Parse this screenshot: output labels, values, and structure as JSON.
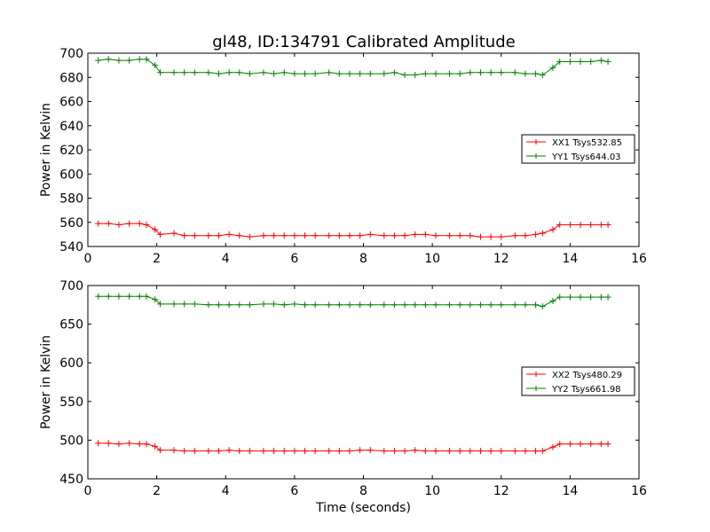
{
  "title": "gl48, ID:134791 Calibrated Amplitude",
  "colors": {
    "xx": "#ff0000",
    "yy": "#008000",
    "axes": "#000000"
  },
  "chart_data": [
    {
      "type": "line",
      "title": "gl48, ID:134791 Calibrated Amplitude",
      "xlabel": "",
      "ylabel": "Power in Kelvin",
      "xlim": [
        0,
        16
      ],
      "ylim": [
        540,
        700
      ],
      "xticks": [
        "0",
        "2",
        "4",
        "6",
        "8",
        "10",
        "12",
        "14",
        "16"
      ],
      "yticks": [
        "540",
        "560",
        "580",
        "600",
        "620",
        "640",
        "660",
        "680",
        "700"
      ],
      "grid": false,
      "legend_position": "right",
      "x": [
        0.3,
        0.6,
        0.9,
        1.2,
        1.5,
        1.7,
        1.95,
        2.1,
        2.5,
        2.8,
        3.1,
        3.5,
        3.8,
        4.1,
        4.4,
        4.7,
        5.1,
        5.4,
        5.7,
        6.0,
        6.3,
        6.6,
        7.0,
        7.3,
        7.6,
        7.9,
        8.2,
        8.6,
        8.9,
        9.2,
        9.5,
        9.8,
        10.1,
        10.5,
        10.8,
        11.1,
        11.4,
        11.7,
        12.0,
        12.4,
        12.7,
        13.0,
        13.2,
        13.5,
        13.7,
        14.0,
        14.3,
        14.6,
        14.9,
        15.1
      ],
      "series": [
        {
          "name": "XX1 Tsys532.85",
          "color": "#ff0000",
          "values": [
            559,
            559,
            558,
            559,
            559,
            558,
            554,
            550,
            551,
            549,
            549,
            549,
            549,
            550,
            549,
            548,
            549,
            549,
            549,
            549,
            549,
            549,
            549,
            549,
            549,
            549,
            550,
            549,
            549,
            549,
            550,
            550,
            549,
            549,
            549,
            549,
            548,
            548,
            548,
            549,
            549,
            550,
            551,
            554,
            558,
            558,
            558,
            558,
            558,
            558
          ]
        },
        {
          "name": "YY1 Tsys644.03",
          "color": "#008000",
          "values": [
            694,
            695,
            694,
            694,
            695,
            695,
            690,
            684,
            684,
            684,
            684,
            684,
            683,
            684,
            684,
            683,
            684,
            683,
            684,
            683,
            683,
            683,
            684,
            683,
            683,
            683,
            683,
            683,
            684,
            682,
            682,
            683,
            683,
            683,
            683,
            684,
            684,
            684,
            684,
            684,
            683,
            683,
            682,
            688,
            693,
            693,
            693,
            693,
            694,
            693
          ]
        }
      ]
    },
    {
      "type": "line",
      "title": "",
      "xlabel": "Time (seconds)",
      "ylabel": "Power in Kelvin",
      "xlim": [
        0,
        16
      ],
      "ylim": [
        450,
        700
      ],
      "xticks": [
        "0",
        "2",
        "4",
        "6",
        "8",
        "10",
        "12",
        "14",
        "16"
      ],
      "yticks": [
        "450",
        "500",
        "550",
        "600",
        "650",
        "700"
      ],
      "grid": false,
      "legend_position": "right",
      "x": [
        0.3,
        0.6,
        0.9,
        1.2,
        1.5,
        1.7,
        1.95,
        2.1,
        2.5,
        2.8,
        3.1,
        3.5,
        3.8,
        4.1,
        4.4,
        4.7,
        5.1,
        5.4,
        5.7,
        6.0,
        6.3,
        6.6,
        7.0,
        7.3,
        7.6,
        7.9,
        8.2,
        8.6,
        8.9,
        9.2,
        9.5,
        9.8,
        10.1,
        10.5,
        10.8,
        11.1,
        11.4,
        11.7,
        12.0,
        12.4,
        12.7,
        13.0,
        13.2,
        13.5,
        13.7,
        14.0,
        14.3,
        14.6,
        14.9,
        15.1
      ],
      "series": [
        {
          "name": "XX2 Tsys480.29",
          "color": "#ff0000",
          "values": [
            496,
            496,
            495,
            496,
            495,
            495,
            492,
            487,
            487,
            486,
            486,
            486,
            486,
            487,
            486,
            486,
            486,
            486,
            486,
            486,
            486,
            486,
            486,
            486,
            486,
            487,
            487,
            486,
            486,
            486,
            487,
            486,
            486,
            486,
            486,
            486,
            486,
            486,
            486,
            486,
            486,
            486,
            486,
            491,
            495,
            495,
            495,
            495,
            495,
            495
          ]
        },
        {
          "name": "YY2 Tsys661.98",
          "color": "#008000",
          "values": [
            686,
            686,
            686,
            686,
            686,
            686,
            682,
            676,
            676,
            676,
            676,
            675,
            675,
            675,
            675,
            675,
            676,
            676,
            675,
            676,
            675,
            675,
            675,
            675,
            675,
            675,
            675,
            675,
            675,
            675,
            675,
            675,
            675,
            675,
            675,
            675,
            675,
            675,
            675,
            675,
            675,
            675,
            673,
            680,
            685,
            685,
            685,
            685,
            685,
            685
          ]
        }
      ]
    }
  ]
}
